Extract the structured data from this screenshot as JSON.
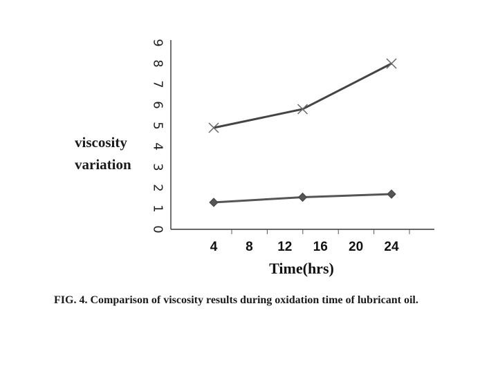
{
  "chart_data": {
    "type": "line",
    "ylabel": [
      "viscosity",
      "variation"
    ],
    "xlabel": "Time(hrs)",
    "caption": "FIG. 4. Comparison of viscosity results during oxidation time of lubricant oil.",
    "x_ticks": [
      4,
      8,
      12,
      16,
      20,
      24
    ],
    "y_ticks": [
      0,
      1,
      2,
      3,
      4,
      5,
      6,
      7,
      8,
      9
    ],
    "ylim": [
      0,
      9
    ],
    "grid": false,
    "series": [
      {
        "marker": "x",
        "color": "#444444",
        "points": [
          {
            "x": 4,
            "y": 4.9
          },
          {
            "x": 14,
            "y": 5.8
          },
          {
            "x": 24,
            "y": 8.0
          }
        ]
      },
      {
        "marker": "diamond",
        "color": "#555555",
        "points": [
          {
            "x": 4,
            "y": 1.3
          },
          {
            "x": 14,
            "y": 1.55
          },
          {
            "x": 24,
            "y": 1.7
          }
        ]
      }
    ]
  }
}
